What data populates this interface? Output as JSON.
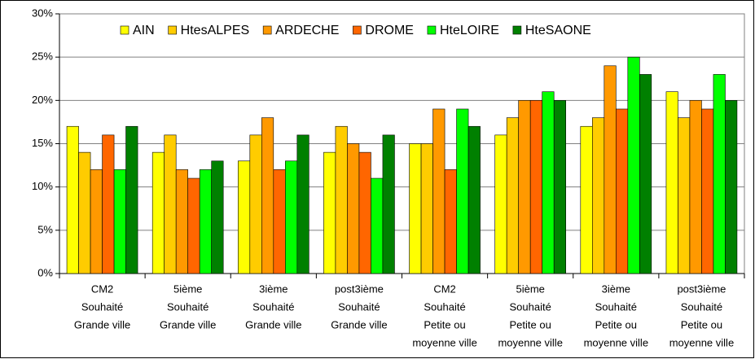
{
  "chart_data": {
    "type": "bar",
    "categories": [
      [
        "CM2",
        "Souhaité",
        "Grande ville"
      ],
      [
        "5ième",
        "Souhaité",
        "Grande ville"
      ],
      [
        "3ième",
        "Souhaité",
        "Grande ville"
      ],
      [
        "post3ième",
        "Souhaité",
        "Grande ville"
      ],
      [
        "CM2",
        "Souhaité",
        "Petite ou",
        "moyenne ville"
      ],
      [
        "5ième",
        "Souhaité",
        "Petite ou",
        "moyenne ville"
      ],
      [
        "3ième",
        "Souhaité",
        "Petite ou",
        "moyenne ville"
      ],
      [
        "post3ième",
        "Souhaité",
        "Petite ou",
        "moyenne ville"
      ]
    ],
    "series": [
      {
        "name": "AIN",
        "color": "#ffff00",
        "values": [
          17,
          14,
          13,
          14,
          15,
          16,
          17,
          21
        ]
      },
      {
        "name": "HtesALPES",
        "color": "#ffcc00",
        "values": [
          14,
          16,
          16,
          17,
          15,
          18,
          18,
          18
        ]
      },
      {
        "name": "ARDECHE",
        "color": "#ff9900",
        "values": [
          12,
          12,
          18,
          15,
          19,
          20,
          24,
          20
        ]
      },
      {
        "name": "DROME",
        "color": "#ff6600",
        "values": [
          16,
          11,
          12,
          14,
          12,
          20,
          19,
          19
        ]
      },
      {
        "name": "HteLOIRE",
        "color": "#00ff00",
        "values": [
          12,
          12,
          13,
          11,
          19,
          21,
          25,
          23
        ]
      },
      {
        "name": "HteSAONE",
        "color": "#008000",
        "values": [
          17,
          13,
          16,
          16,
          17,
          20,
          23,
          20
        ]
      }
    ],
    "ylim": [
      0,
      30
    ],
    "yticks": [
      {
        "value": 0,
        "label": "0%"
      },
      {
        "value": 5,
        "label": "5%"
      },
      {
        "value": 10,
        "label": "10%"
      },
      {
        "value": 15,
        "label": "15%"
      },
      {
        "value": 20,
        "label": "20%"
      },
      {
        "value": 25,
        "label": "25%"
      },
      {
        "value": 30,
        "label": "30%"
      }
    ],
    "grid": true,
    "legend": "top"
  }
}
